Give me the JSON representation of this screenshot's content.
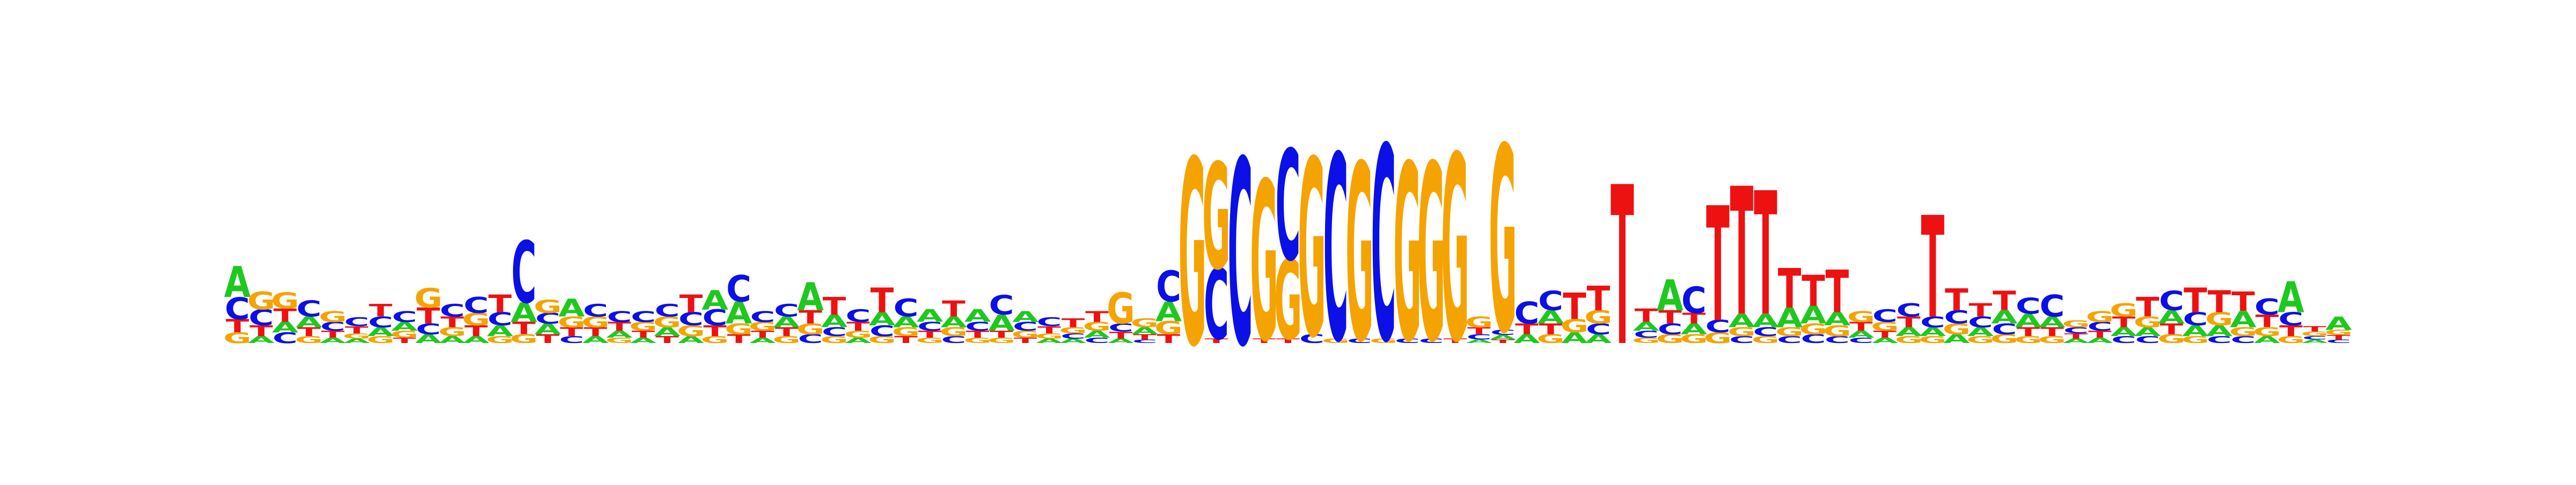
{
  "colors": {
    "A": "#1fc81f",
    "C": "#0a10e6",
    "G": "#f5a300",
    "T": "#ee1111"
  },
  "logo": {
    "type": "sequence-logo",
    "background": "#ffffff",
    "positions": [
      [
        [
          "T",
          0.15
        ],
        [
          "G",
          0.12
        ],
        [
          "C",
          0.25
        ],
        [
          "A",
          0.35
        ]
      ],
      [
        [
          "A",
          0.08
        ],
        [
          "T",
          0.12
        ],
        [
          "C",
          0.18
        ],
        [
          "G",
          0.2
        ]
      ],
      [
        [
          "C",
          0.12
        ],
        [
          "A",
          0.12
        ],
        [
          "T",
          0.15
        ],
        [
          "G",
          0.18
        ]
      ],
      [
        [
          "G",
          0.08
        ],
        [
          "T",
          0.1
        ],
        [
          "A",
          0.12
        ],
        [
          "C",
          0.18
        ]
      ],
      [
        [
          "A",
          0.06
        ],
        [
          "T",
          0.08
        ],
        [
          "C",
          0.1
        ],
        [
          "G",
          0.12
        ]
      ],
      [
        [
          "A",
          0.05
        ],
        [
          "G",
          0.06
        ],
        [
          "T",
          0.08
        ],
        [
          "C",
          0.1
        ]
      ],
      [
        [
          "G",
          0.08
        ],
        [
          "A",
          0.1
        ],
        [
          "C",
          0.12
        ],
        [
          "T",
          0.14
        ]
      ],
      [
        [
          "T",
          0.06
        ],
        [
          "G",
          0.08
        ],
        [
          "A",
          0.1
        ],
        [
          "C",
          0.12
        ]
      ],
      [
        [
          "A",
          0.1
        ],
        [
          "C",
          0.12
        ],
        [
          "T",
          0.18
        ],
        [
          "G",
          0.22
        ]
      ],
      [
        [
          "A",
          0.08
        ],
        [
          "G",
          0.1
        ],
        [
          "T",
          0.12
        ],
        [
          "C",
          0.14
        ]
      ],
      [
        [
          "A",
          0.08
        ],
        [
          "T",
          0.12
        ],
        [
          "G",
          0.14
        ],
        [
          "C",
          0.18
        ]
      ],
      [
        [
          "G",
          0.08
        ],
        [
          "A",
          0.12
        ],
        [
          "C",
          0.15
        ],
        [
          "T",
          0.2
        ]
      ],
      [
        [
          "G",
          0.1
        ],
        [
          "T",
          0.14
        ],
        [
          "A",
          0.22
        ],
        [
          "C",
          0.7
        ]
      ],
      [
        [
          "T",
          0.1
        ],
        [
          "A",
          0.12
        ],
        [
          "G",
          0.15
        ],
        [
          "C",
          0.12
        ]
      ],
      [
        [
          "C",
          0.08
        ],
        [
          "T",
          0.1
        ],
        [
          "G",
          0.12
        ],
        [
          "A",
          0.2
        ]
      ],
      [
        [
          "A",
          0.08
        ],
        [
          "T",
          0.1
        ],
        [
          "G",
          0.12
        ],
        [
          "C",
          0.14
        ]
      ],
      [
        [
          "G",
          0.06
        ],
        [
          "A",
          0.08
        ],
        [
          "T",
          0.1
        ],
        [
          "C",
          0.12
        ]
      ],
      [
        [
          "A",
          0.06
        ],
        [
          "T",
          0.08
        ],
        [
          "G",
          0.1
        ],
        [
          "C",
          0.12
        ]
      ],
      [
        [
          "T",
          0.08
        ],
        [
          "A",
          0.1
        ],
        [
          "G",
          0.12
        ],
        [
          "C",
          0.14
        ]
      ],
      [
        [
          "A",
          0.08
        ],
        [
          "G",
          0.12
        ],
        [
          "C",
          0.15
        ],
        [
          "T",
          0.2
        ]
      ],
      [
        [
          "G",
          0.08
        ],
        [
          "T",
          0.12
        ],
        [
          "C",
          0.18
        ],
        [
          "A",
          0.22
        ]
      ],
      [
        [
          "T",
          0.1
        ],
        [
          "G",
          0.12
        ],
        [
          "A",
          0.25
        ],
        [
          "C",
          0.3
        ]
      ],
      [
        [
          "A",
          0.06
        ],
        [
          "T",
          0.08
        ],
        [
          "G",
          0.1
        ],
        [
          "C",
          0.12
        ]
      ],
      [
        [
          "G",
          0.08
        ],
        [
          "T",
          0.1
        ],
        [
          "A",
          0.12
        ],
        [
          "C",
          0.14
        ]
      ],
      [
        [
          "C",
          0.1
        ],
        [
          "G",
          0.12
        ],
        [
          "T",
          0.15
        ],
        [
          "A",
          0.32
        ]
      ],
      [
        [
          "G",
          0.08
        ],
        [
          "C",
          0.1
        ],
        [
          "A",
          0.14
        ],
        [
          "T",
          0.2
        ]
      ],
      [
        [
          "A",
          0.06
        ],
        [
          "G",
          0.08
        ],
        [
          "T",
          0.1
        ],
        [
          "C",
          0.14
        ]
      ],
      [
        [
          "G",
          0.08
        ],
        [
          "C",
          0.12
        ],
        [
          "A",
          0.15
        ],
        [
          "T",
          0.28
        ]
      ],
      [
        [
          "T",
          0.08
        ],
        [
          "G",
          0.1
        ],
        [
          "A",
          0.12
        ],
        [
          "C",
          0.2
        ]
      ],
      [
        [
          "G",
          0.06
        ],
        [
          "T",
          0.08
        ],
        [
          "C",
          0.1
        ],
        [
          "A",
          0.14
        ]
      ],
      [
        [
          "C",
          0.08
        ],
        [
          "G",
          0.1
        ],
        [
          "A",
          0.12
        ],
        [
          "T",
          0.18
        ]
      ],
      [
        [
          "G",
          0.06
        ],
        [
          "T",
          0.08
        ],
        [
          "C",
          0.1
        ],
        [
          "A",
          0.14
        ]
      ],
      [
        [
          "G",
          0.06
        ],
        [
          "T",
          0.08
        ],
        [
          "C",
          0.22
        ],
        [
          "A",
          0.18
        ]
      ],
      [
        [
          "T",
          0.06
        ],
        [
          "G",
          0.08
        ],
        [
          "C",
          0.1
        ],
        [
          "A",
          0.12
        ]
      ],
      [
        [
          "A",
          0.05
        ],
        [
          "G",
          0.06
        ],
        [
          "T",
          0.08
        ],
        [
          "C",
          0.1
        ]
      ],
      [
        [
          "A",
          0.05
        ],
        [
          "C",
          0.06
        ],
        [
          "G",
          0.07
        ],
        [
          "T",
          0.1
        ]
      ],
      [
        [
          "C",
          0.06
        ],
        [
          "A",
          0.08
        ],
        [
          "G",
          0.1
        ],
        [
          "T",
          0.12
        ]
      ],
      [
        [
          "A",
          0.05
        ],
        [
          "T",
          0.08
        ],
        [
          "C",
          0.09
        ],
        [
          "G",
          0.35
        ]
      ],
      [
        [
          "C",
          0.04
        ],
        [
          "T",
          0.06
        ],
        [
          "A",
          0.08
        ],
        [
          "G",
          0.1
        ]
      ],
      [
        [
          "T",
          0.1
        ],
        [
          "G",
          0.15
        ],
        [
          "A",
          0.22
        ],
        [
          "C",
          0.35
        ]
      ],
      [
        [
          "G",
          2.1
        ]
      ],
      [
        [
          "T",
          0.05
        ],
        [
          "C",
          0.8
        ],
        [
          "G",
          1.2
        ]
      ],
      [
        [
          "C",
          2.1
        ]
      ],
      [
        [
          "T",
          0.05
        ],
        [
          "G",
          1.8
        ]
      ],
      [
        [
          "T",
          0.05
        ],
        [
          "G",
          0.9
        ],
        [
          "C",
          1.25
        ]
      ],
      [
        [
          "C",
          0.1
        ],
        [
          "G",
          2.0
        ]
      ],
      [
        [
          "G",
          0.05
        ],
        [
          "C",
          2.1
        ]
      ],
      [
        [
          "C",
          0.05
        ],
        [
          "G",
          2.0
        ]
      ],
      [
        [
          "G",
          0.05
        ],
        [
          "C",
          2.2
        ]
      ],
      [
        [
          "C",
          0.05
        ],
        [
          "G",
          2.0
        ]
      ],
      [
        [
          "C",
          0.05
        ],
        [
          "G",
          2.0
        ]
      ],
      [
        [
          "T",
          0.05
        ],
        [
          "G",
          2.1
        ]
      ],
      [
        [
          "A",
          0.04
        ],
        [
          "C",
          0.06
        ],
        [
          "T",
          0.08
        ],
        [
          "G",
          0.12
        ]
      ],
      [
        [
          "T",
          0.04
        ],
        [
          "A",
          0.05
        ],
        [
          "C",
          0.06
        ],
        [
          "G",
          2.1
        ]
      ],
      [
        [
          "A",
          0.1
        ],
        [
          "T",
          0.12
        ],
        [
          "C",
          0.25
        ]
      ],
      [
        [
          "G",
          0.1
        ],
        [
          "T",
          0.12
        ],
        [
          "A",
          0.15
        ],
        [
          "C",
          0.22
        ]
      ],
      [
        [
          "A",
          0.12
        ],
        [
          "G",
          0.15
        ],
        [
          "T",
          0.3
        ]
      ],
      [
        [
          "A",
          0.1
        ],
        [
          "C",
          0.12
        ],
        [
          "G",
          0.15
        ],
        [
          "T",
          0.28
        ]
      ],
      [
        [
          "T",
          1.8
        ]
      ],
      [
        [
          "G",
          0.06
        ],
        [
          "C",
          0.08
        ],
        [
          "A",
          0.1
        ],
        [
          "T",
          0.15
        ]
      ],
      [
        [
          "G",
          0.1
        ],
        [
          "C",
          0.12
        ],
        [
          "T",
          0.15
        ],
        [
          "A",
          0.35
        ]
      ],
      [
        [
          "G",
          0.1
        ],
        [
          "A",
          0.12
        ],
        [
          "T",
          0.12
        ],
        [
          "C",
          0.3
        ]
      ],
      [
        [
          "G",
          0.12
        ],
        [
          "C",
          0.14
        ],
        [
          "T",
          1.3
        ]
      ],
      [
        [
          "C",
          0.08
        ],
        [
          "G",
          0.1
        ],
        [
          "A",
          0.15
        ],
        [
          "T",
          1.45
        ]
      ],
      [
        [
          "G",
          0.08
        ],
        [
          "C",
          0.1
        ],
        [
          "A",
          0.15
        ],
        [
          "T",
          1.4
        ]
      ],
      [
        [
          "C",
          0.08
        ],
        [
          "G",
          0.1
        ],
        [
          "A",
          0.22
        ],
        [
          "T",
          0.45
        ]
      ],
      [
        [
          "C",
          0.1
        ],
        [
          "G",
          0.12
        ],
        [
          "A",
          0.2
        ],
        [
          "T",
          0.35
        ]
      ],
      [
        [
          "C",
          0.08
        ],
        [
          "G",
          0.12
        ],
        [
          "A",
          0.15
        ],
        [
          "T",
          0.48
        ]
      ],
      [
        [
          "C",
          0.06
        ],
        [
          "A",
          0.08
        ],
        [
          "T",
          0.1
        ],
        [
          "G",
          0.12
        ]
      ],
      [
        [
          "A",
          0.06
        ],
        [
          "T",
          0.08
        ],
        [
          "G",
          0.1
        ],
        [
          "C",
          0.14
        ]
      ],
      [
        [
          "G",
          0.08
        ],
        [
          "A",
          0.1
        ],
        [
          "T",
          0.12
        ],
        [
          "C",
          0.15
        ]
      ],
      [
        [
          "G",
          0.08
        ],
        [
          "A",
          0.1
        ],
        [
          "C",
          0.12
        ],
        [
          "T",
          1.15
        ]
      ],
      [
        [
          "A",
          0.1
        ],
        [
          "G",
          0.12
        ],
        [
          "C",
          0.15
        ],
        [
          "T",
          0.25
        ]
      ],
      [
        [
          "G",
          0.08
        ],
        [
          "A",
          0.1
        ],
        [
          "C",
          0.12
        ],
        [
          "T",
          0.15
        ]
      ],
      [
        [
          "G",
          0.1
        ],
        [
          "C",
          0.12
        ],
        [
          "A",
          0.15
        ],
        [
          "T",
          0.22
        ]
      ],
      [
        [
          "G",
          0.08
        ],
        [
          "T",
          0.1
        ],
        [
          "C",
          0.18
        ],
        [
          "A",
          0.15
        ]
      ],
      [
        [
          "G",
          0.08
        ],
        [
          "T",
          0.1
        ],
        [
          "A",
          0.12
        ],
        [
          "C",
          0.25
        ]
      ],
      [
        [
          "A",
          0.05
        ],
        [
          "T",
          0.06
        ],
        [
          "C",
          0.07
        ],
        [
          "G",
          0.08
        ]
      ],
      [
        [
          "A",
          0.06
        ],
        [
          "T",
          0.08
        ],
        [
          "C",
          0.1
        ],
        [
          "G",
          0.12
        ]
      ],
      [
        [
          "C",
          0.08
        ],
        [
          "A",
          0.1
        ],
        [
          "T",
          0.12
        ],
        [
          "G",
          0.15
        ]
      ],
      [
        [
          "C",
          0.08
        ],
        [
          "A",
          0.1
        ],
        [
          "G",
          0.12
        ],
        [
          "T",
          0.22
        ]
      ],
      [
        [
          "G",
          0.1
        ],
        [
          "T",
          0.12
        ],
        [
          "A",
          0.15
        ],
        [
          "C",
          0.22
        ]
      ],
      [
        [
          "G",
          0.08
        ],
        [
          "A",
          0.12
        ],
        [
          "C",
          0.15
        ],
        [
          "T",
          0.28
        ]
      ],
      [
        [
          "C",
          0.08
        ],
        [
          "A",
          0.12
        ],
        [
          "G",
          0.15
        ],
        [
          "T",
          0.25
        ]
      ],
      [
        [
          "C",
          0.08
        ],
        [
          "G",
          0.1
        ],
        [
          "T",
          0.22
        ],
        [
          "A",
          0.18
        ]
      ],
      [
        [
          "A",
          0.08
        ],
        [
          "G",
          0.1
        ],
        [
          "T",
          0.14
        ],
        [
          "C",
          0.18
        ]
      ],
      [
        [
          "G",
          0.08
        ],
        [
          "T",
          0.12
        ],
        [
          "C",
          0.15
        ],
        [
          "A",
          0.35
        ]
      ],
      [
        [
          "A",
          0.04
        ],
        [
          "C",
          0.04
        ],
        [
          "G",
          0.05
        ],
        [
          "T",
          0.06
        ]
      ],
      [
        [
          "C",
          0.04
        ],
        [
          "T",
          0.05
        ],
        [
          "G",
          0.06
        ],
        [
          "A",
          0.15
        ]
      ]
    ]
  }
}
